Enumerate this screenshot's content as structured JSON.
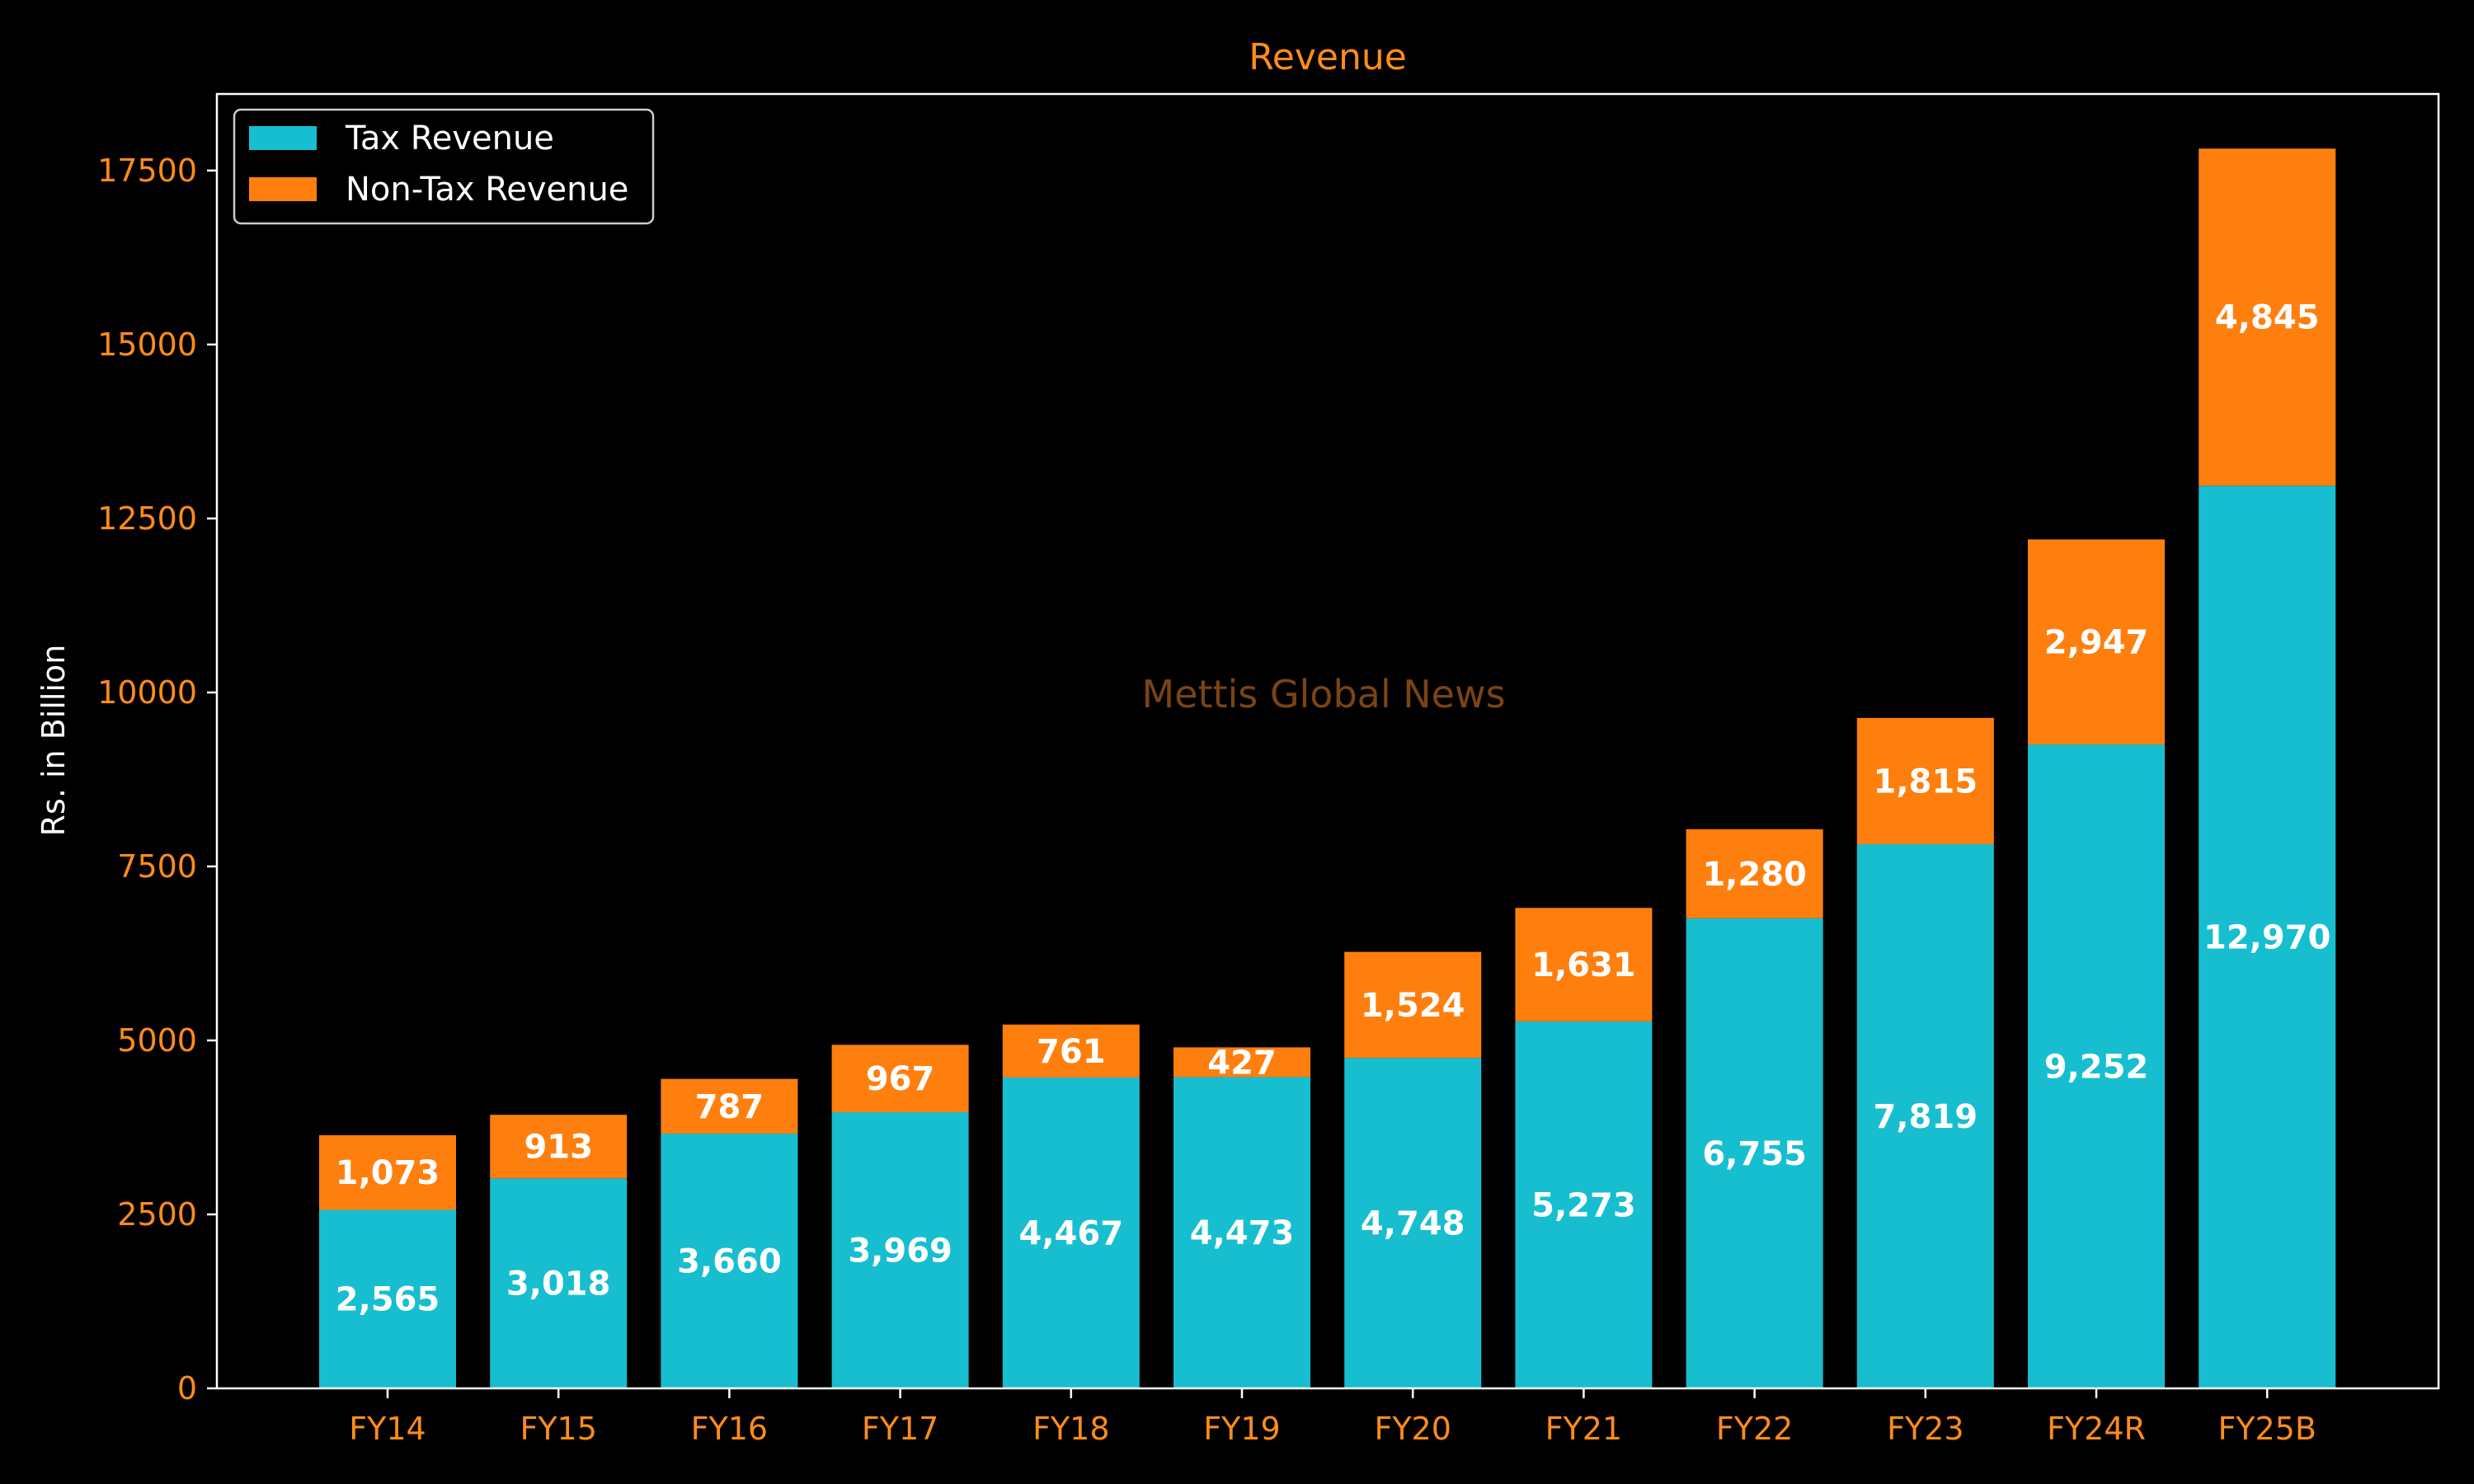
{
  "chart_data": {
    "type": "bar",
    "stacked": true,
    "title": "Revenue",
    "xlabel": "",
    "ylabel": "Rs. in Billion",
    "ylim": [
      0,
      18600
    ],
    "yticks": [
      0,
      2500,
      5000,
      7500,
      10000,
      12500,
      15000,
      17500
    ],
    "yticks_text": [
      "0",
      "2500",
      "5000",
      "7500",
      "10000",
      "12500",
      "15000",
      "17500"
    ],
    "categories": [
      "FY14",
      "FY15",
      "FY16",
      "FY17",
      "FY18",
      "FY19",
      "FY20",
      "FY21",
      "FY22",
      "FY23",
      "FY24R",
      "FY25B"
    ],
    "series": [
      {
        "name": "Tax Revenue",
        "color": "#17becf",
        "values": [
          2565,
          3018,
          3660,
          3969,
          4467,
          4473,
          4748,
          5273,
          6755,
          7819,
          9252,
          12970
        ],
        "labels": [
          "2,565",
          "3,018",
          "3,660",
          "3,969",
          "4,467",
          "4,473",
          "4,748",
          "5,273",
          "6,755",
          "7,819",
          "9,252",
          "12,970"
        ]
      },
      {
        "name": "Non-Tax Revenue",
        "color": "#ff7f0e",
        "values": [
          1073,
          913,
          787,
          967,
          761,
          427,
          1524,
          1631,
          1280,
          1815,
          2947,
          4845
        ],
        "labels": [
          "1,073",
          "913",
          "787",
          "967",
          "761",
          "427",
          "1,524",
          "1,631",
          "1,280",
          "1,815",
          "2,947",
          "4,845"
        ]
      }
    ],
    "legend": "top-left",
    "grid": false,
    "watermark": "Mettis Global News",
    "colors": {
      "background": "#000000",
      "axis": "#ffffff",
      "tick_text": "#ff8c1a",
      "title": "#ff8c1a",
      "watermark": "#7a4413"
    }
  }
}
